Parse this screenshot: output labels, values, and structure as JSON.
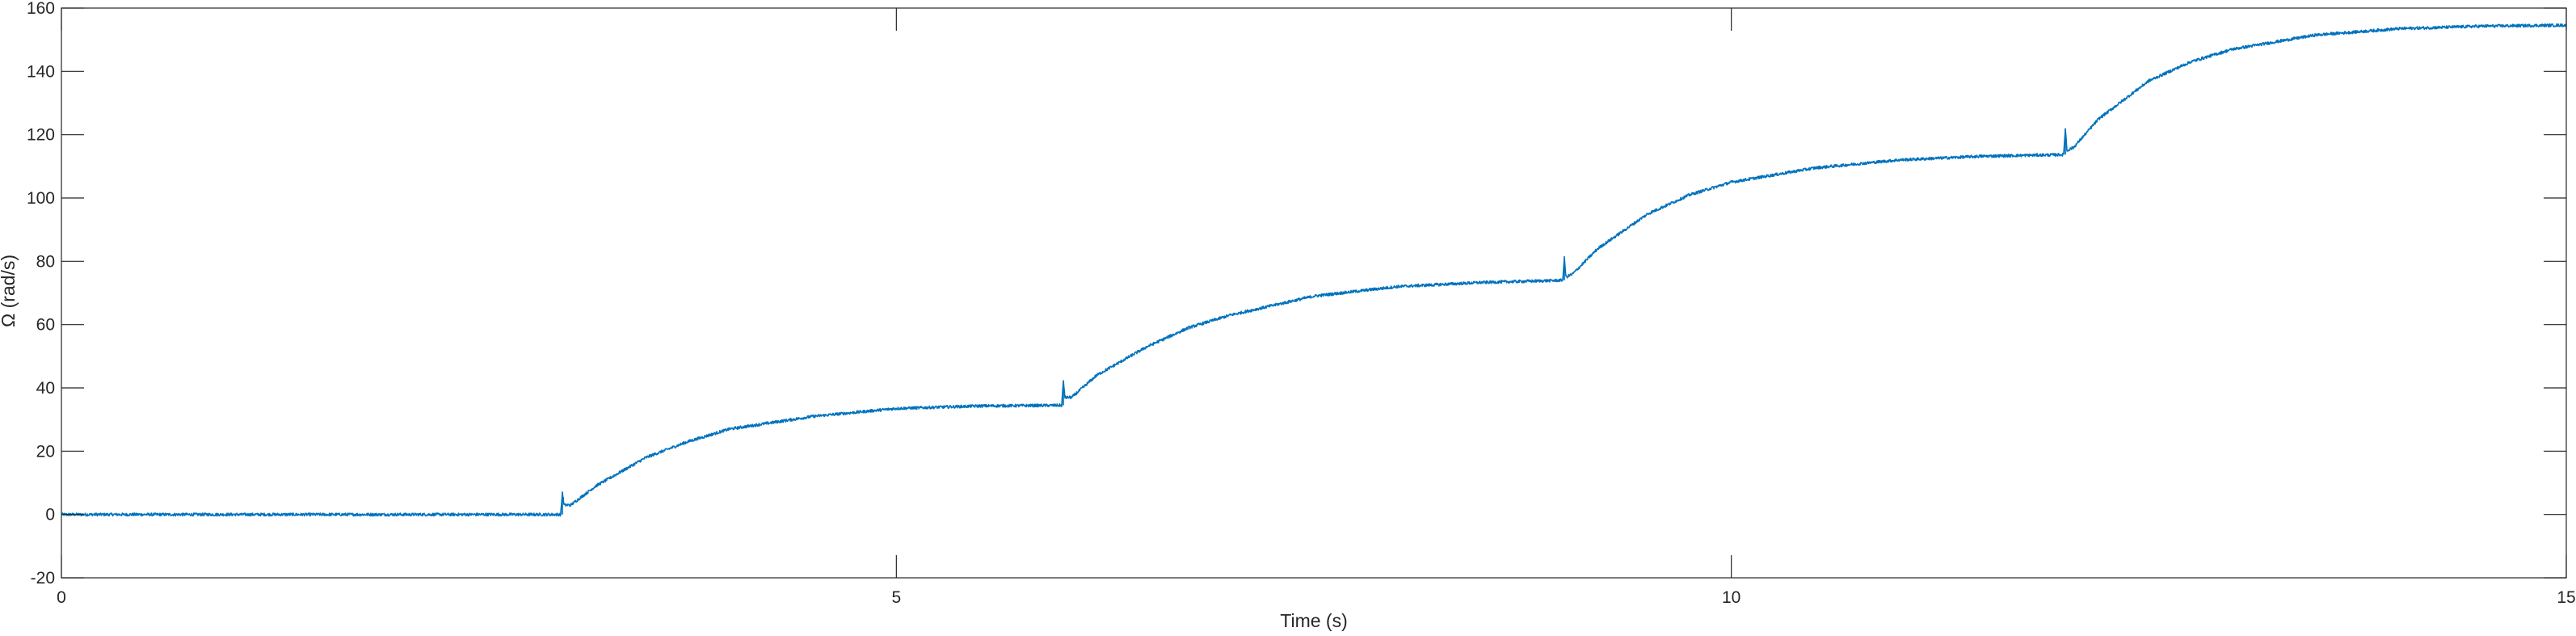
{
  "chart_data": {
    "type": "line",
    "xlabel": "Time (s)",
    "ylabel": "Ω (rad/s)",
    "xlim": [
      0,
      15
    ],
    "ylim": [
      -20,
      160
    ],
    "xticks": [
      0,
      5,
      10,
      15
    ],
    "yticks": [
      -20,
      0,
      20,
      40,
      60,
      80,
      100,
      120,
      140,
      160
    ],
    "xtick_labels": [
      "0",
      "5",
      "10",
      "15"
    ],
    "ytick_labels": [
      "-20",
      "0",
      "20",
      "40",
      "60",
      "80",
      "100",
      "120",
      "140",
      "160"
    ],
    "grid": false,
    "line_color": "#0072bd",
    "series": [
      {
        "x": [
          0,
          1,
          2,
          2.99,
          3.0,
          3.01,
          3.05,
          3.2,
          3.5,
          3.75,
          4.0,
          4.5,
          5.0,
          5.5,
          5.99,
          6.0,
          6.01,
          6.05,
          6.2,
          6.5,
          6.75,
          7.0,
          7.5,
          8.0,
          8.5,
          8.99,
          9.0,
          9.01,
          9.05,
          9.2,
          9.5,
          9.75,
          10.0,
          10.5,
          11.0,
          11.5,
          11.99,
          12.0,
          12.01,
          12.05,
          12.2,
          12.5,
          12.75,
          13.0,
          13.5,
          14.0,
          14.5,
          15.0
        ],
        "y": [
          0,
          0,
          0,
          0,
          7,
          3,
          3,
          9,
          18,
          23,
          27,
          31,
          33.5,
          34.3,
          34.5,
          42,
          37,
          37,
          44,
          53,
          59,
          63,
          69,
          72,
          73.3,
          74,
          81,
          75,
          76,
          84,
          95,
          101,
          105,
          109.5,
          112,
          113.2,
          113.7,
          122,
          115,
          116,
          125,
          137,
          143,
          147,
          151.5,
          153.5,
          154.3,
          154.6
        ]
      }
    ]
  }
}
